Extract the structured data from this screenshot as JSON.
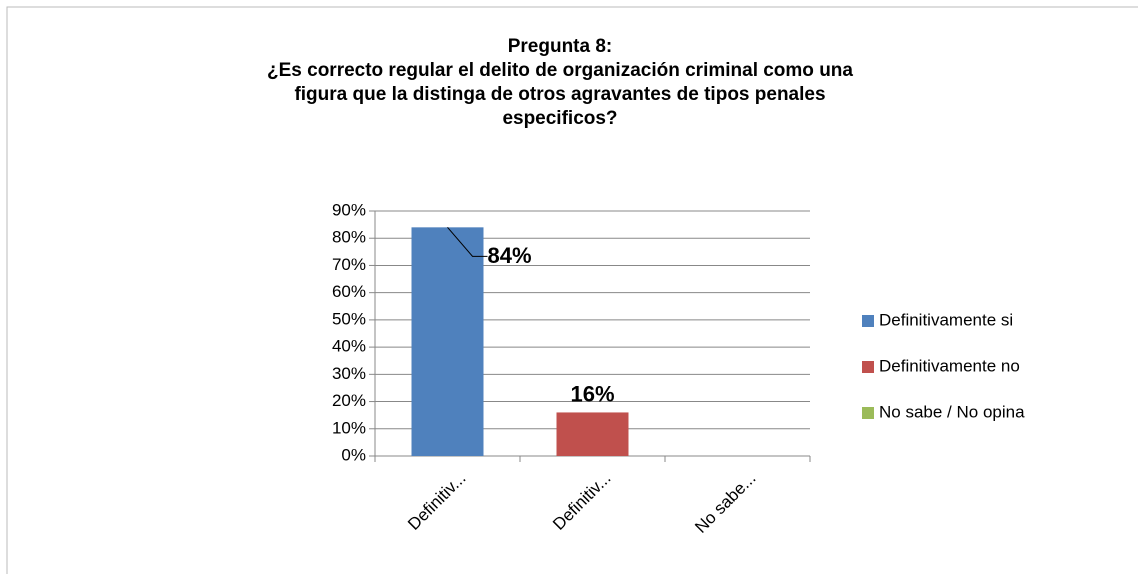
{
  "chart_data": {
    "type": "bar",
    "title": [
      "Pregunta 8:",
      "¿Es correcto regular el delito de organización criminal como una",
      "figura que la distinga de otros agravantes de tipos penales",
      "especificos?"
    ],
    "categories": [
      "Definitiv...",
      "Definitiv...",
      "No sabe..."
    ],
    "series": [
      {
        "name": "Definitivamente si",
        "color": "#4f81bd",
        "values": [
          84,
          null,
          null
        ],
        "value_labels": [
          "84%",
          null,
          null
        ]
      },
      {
        "name": "Definitivamente no",
        "color": "#c0504d",
        "values": [
          null,
          16,
          null
        ],
        "value_labels": [
          null,
          "16%",
          null
        ]
      },
      {
        "name": "No sabe / No opina",
        "color": "#9bbb59",
        "values": [
          null,
          null,
          0
        ],
        "value_labels": [
          null,
          null,
          null
        ]
      }
    ],
    "ylim": [
      0,
      90
    ],
    "yticks": [
      {
        "value": 0,
        "label": "0%"
      },
      {
        "value": 10,
        "label": "10%"
      },
      {
        "value": 20,
        "label": "20%"
      },
      {
        "value": 30,
        "label": "30%"
      },
      {
        "value": 40,
        "label": "40%"
      },
      {
        "value": 50,
        "label": "50%"
      },
      {
        "value": 60,
        "label": "60%"
      },
      {
        "value": 70,
        "label": "70%"
      },
      {
        "value": 80,
        "label": "80%"
      },
      {
        "value": 90,
        "label": "90%"
      }
    ],
    "grid": true,
    "legend": "right"
  }
}
